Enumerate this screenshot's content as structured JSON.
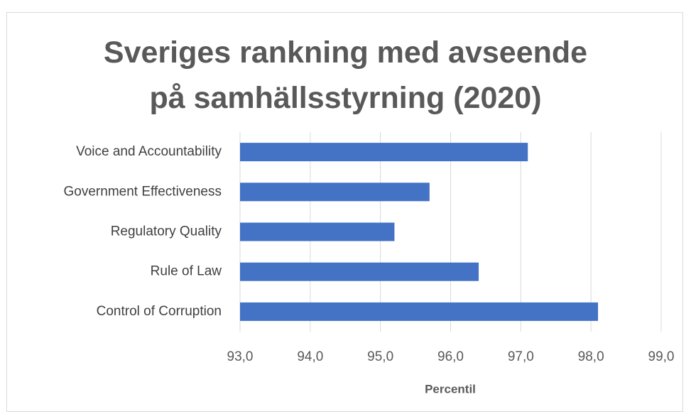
{
  "chart_data": {
    "type": "bar",
    "orientation": "horizontal",
    "title": "Sveriges rankning med avseende på samhällsstyrning (2020)",
    "x_label": "Percentil",
    "categories": [
      "Voice and Accountability",
      "Government Effectiveness",
      "Regulatory Quality",
      "Rule of Law",
      "Control of Corruption"
    ],
    "values": [
      97.1,
      95.7,
      95.2,
      96.4,
      98.1
    ],
    "color": "#4472c4",
    "xlim": [
      93,
      99
    ],
    "xticks": [
      {
        "value": 93,
        "label": "93,0"
      },
      {
        "value": 94,
        "label": "94,0"
      },
      {
        "value": 95,
        "label": "95,0"
      },
      {
        "value": 96,
        "label": "96,0"
      },
      {
        "value": 97,
        "label": "97,0"
      },
      {
        "value": 98,
        "label": "98,0"
      },
      {
        "value": 99,
        "label": "99,0"
      }
    ],
    "grid": true
  }
}
